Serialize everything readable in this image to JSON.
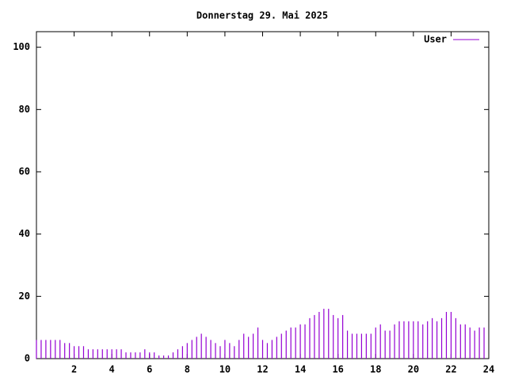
{
  "chart_data": {
    "type": "impulse",
    "title": "Donnerstag 29. Mai 2025",
    "series": [
      {
        "name": "User",
        "color": "#9400d3",
        "x": [
          0,
          0.25,
          0.5,
          0.75,
          1,
          1.25,
          1.5,
          1.75,
          2,
          2.25,
          2.5,
          2.75,
          3,
          3.25,
          3.5,
          3.75,
          4,
          4.25,
          4.5,
          4.75,
          5,
          5.25,
          5.5,
          5.75,
          6,
          6.25,
          6.5,
          6.75,
          7,
          7.25,
          7.5,
          7.75,
          8,
          8.25,
          8.5,
          8.75,
          9,
          9.25,
          9.5,
          9.75,
          10,
          10.25,
          10.5,
          10.75,
          11,
          11.25,
          11.5,
          11.75,
          12,
          12.25,
          12.5,
          12.75,
          13,
          13.25,
          13.5,
          13.75,
          14,
          14.25,
          14.5,
          14.75,
          15,
          15.25,
          15.5,
          15.75,
          16,
          16.25,
          16.5,
          16.75,
          17,
          17.25,
          17.5,
          17.75,
          18,
          18.25,
          18.5,
          18.75,
          19,
          19.25,
          19.5,
          19.75,
          20,
          20.25,
          20.5,
          20.75,
          21,
          21.25,
          21.5,
          21.75,
          22,
          22.25,
          22.5,
          22.75,
          23,
          23.25,
          23.5,
          23.75
        ],
        "values": [
          6,
          6,
          6,
          6,
          6,
          6,
          5,
          5,
          4,
          4,
          4,
          3,
          3,
          3,
          3,
          3,
          3,
          3,
          3,
          2,
          2,
          2,
          2,
          3,
          2,
          2,
          1,
          1,
          1,
          2,
          3,
          4,
          5,
          6,
          7,
          8,
          7,
          6,
          5,
          4,
          6,
          5,
          4,
          6,
          8,
          7,
          8,
          10,
          6,
          5,
          6,
          7,
          8,
          9,
          10,
          10,
          11,
          11,
          13,
          14,
          15,
          16,
          16,
          14,
          13,
          14,
          9,
          8,
          8,
          8,
          8,
          8,
          10,
          11,
          9,
          9,
          11,
          12,
          12,
          12,
          12,
          12,
          11,
          12,
          13,
          12,
          13,
          15,
          15,
          13,
          11,
          11,
          10,
          9,
          10,
          10
        ]
      }
    ],
    "xlim": [
      0,
      24
    ],
    "xticks": [
      2,
      4,
      6,
      8,
      10,
      12,
      14,
      16,
      18,
      20,
      22,
      24
    ],
    "ylim": [
      0,
      105
    ],
    "yticks": [
      0,
      20,
      40,
      60,
      80,
      100
    ]
  }
}
